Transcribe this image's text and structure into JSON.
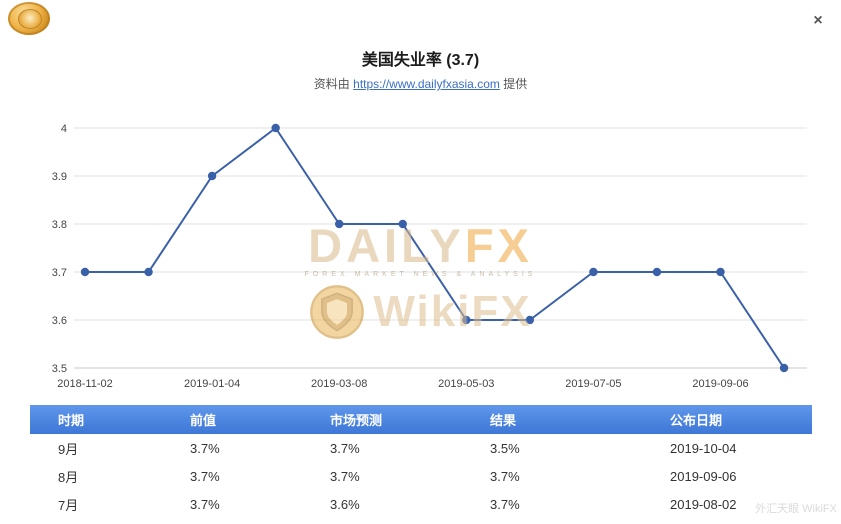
{
  "window": {
    "close_label": "×"
  },
  "header": {
    "title": "美国失业率 (3.7)",
    "source_prefix": "资料由 ",
    "source_link": "https://www.dailyfxasia.com",
    "source_suffix": " 提供"
  },
  "chart_data": {
    "type": "line",
    "title": "美国失业率 (3.7)",
    "values": [
      3.7,
      3.7,
      3.9,
      4,
      3.8,
      3.8,
      3.6,
      3.6,
      3.7,
      3.7,
      3.7,
      3.5
    ],
    "x_tick_labels": [
      "2018-11-02",
      "2019-01-04",
      "2019-03-08",
      "2019-05-03",
      "2019-07-05",
      "2019-09-06"
    ],
    "y_ticks": [
      "4",
      "3.9",
      "3.8",
      "3.7",
      "3.6",
      "3.5"
    ],
    "ylim": [
      3.5,
      4
    ],
    "grid": "horizontal",
    "legend": "none",
    "line_color": "#3a60a8"
  },
  "watermark": {
    "daily": "DAILY",
    "fx": "FX",
    "tagline": "FOREX MARKET NEWS & ANALYSIS",
    "wikifx": "WikiFX",
    "corner": "外汇天眼 WikiFX",
    "gold_color": "#e8a93c"
  },
  "table": {
    "headers": [
      "时期",
      "前值",
      "市场预测",
      "结果",
      "公布日期"
    ],
    "rows": [
      [
        "9月",
        "3.7%",
        "3.7%",
        "3.5%",
        "2019-10-04"
      ],
      [
        "8月",
        "3.7%",
        "3.7%",
        "3.7%",
        "2019-09-06"
      ],
      [
        "7月",
        "3.7%",
        "3.6%",
        "3.7%",
        "2019-08-02"
      ]
    ]
  }
}
